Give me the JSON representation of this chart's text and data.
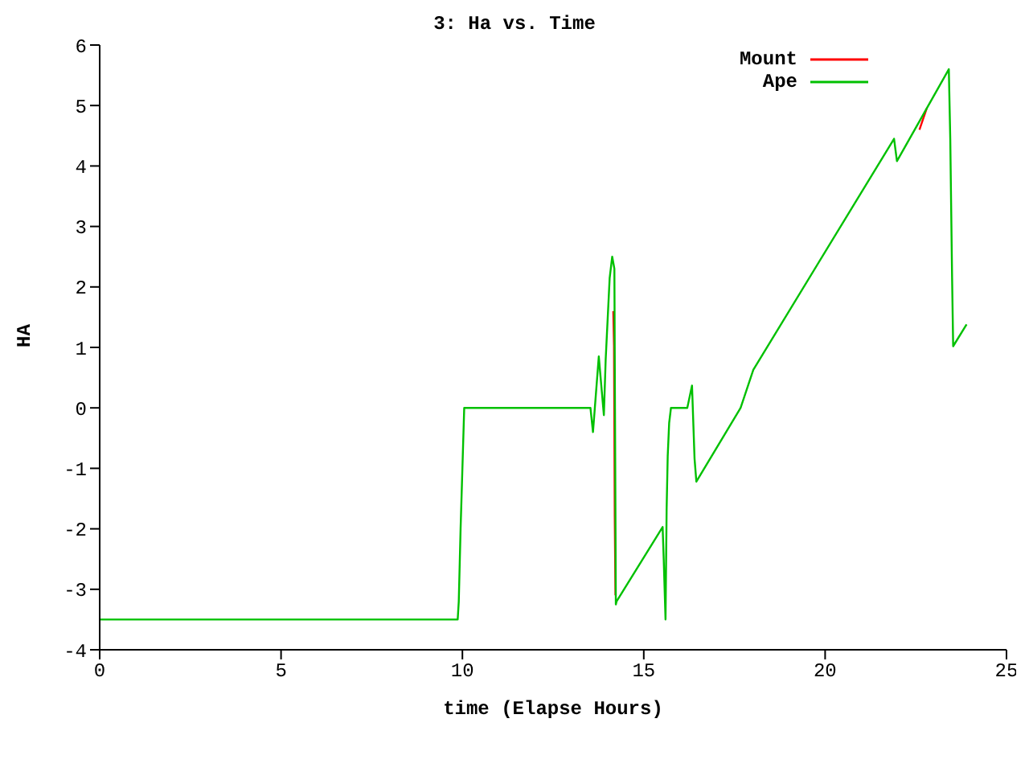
{
  "chart_data": {
    "type": "line",
    "title": "3: Ha vs. Time",
    "xlabel": "time (Elapse Hours)",
    "ylabel": "HA",
    "xlim": [
      0,
      25
    ],
    "xticks": [
      0,
      5,
      10,
      15,
      20,
      25
    ],
    "ylim": [
      -4,
      6
    ],
    "yticks": [
      -4,
      -3,
      -2,
      -1,
      0,
      1,
      2,
      3,
      4,
      5,
      6
    ],
    "legend": "top right",
    "series": [
      {
        "name": "Mount",
        "color": "#ff0000",
        "x": [
          14.16,
          14.18,
          14.2,
          14.22,
          18.0,
          22.6,
          22.8
        ],
        "values": [
          1.6,
          1.03,
          -1.8,
          -3.1,
          null,
          4.6,
          4.95
        ]
      },
      {
        "name": "Ape",
        "color": "#00c000",
        "x": [
          0,
          9.87,
          9.9,
          9.95,
          10.0,
          10.05,
          13.53,
          13.6,
          13.76,
          13.9,
          13.95,
          14.06,
          14.13,
          14.19,
          14.23,
          14.25,
          15.52,
          15.55,
          15.6,
          15.63,
          15.66,
          15.7,
          15.75,
          16.2,
          16.33,
          16.4,
          16.45,
          17.67,
          18.02,
          21.9,
          21.98,
          23.41,
          23.45,
          23.5,
          23.53,
          23.9
        ],
        "values": [
          -3.5,
          -3.5,
          -3.2,
          -2.0,
          -1.0,
          0,
          0,
          -0.4,
          0.85,
          -0.12,
          0.8,
          2.15,
          2.5,
          2.3,
          -3.25,
          -3.2,
          -1.97,
          -2.5,
          -3.5,
          -1.68,
          -0.8,
          -0.25,
          0,
          0,
          0.37,
          -0.84,
          -1.22,
          0,
          0.63,
          4.45,
          4.08,
          5.6,
          4.45,
          2.16,
          1.02,
          1.38
        ]
      }
    ]
  }
}
